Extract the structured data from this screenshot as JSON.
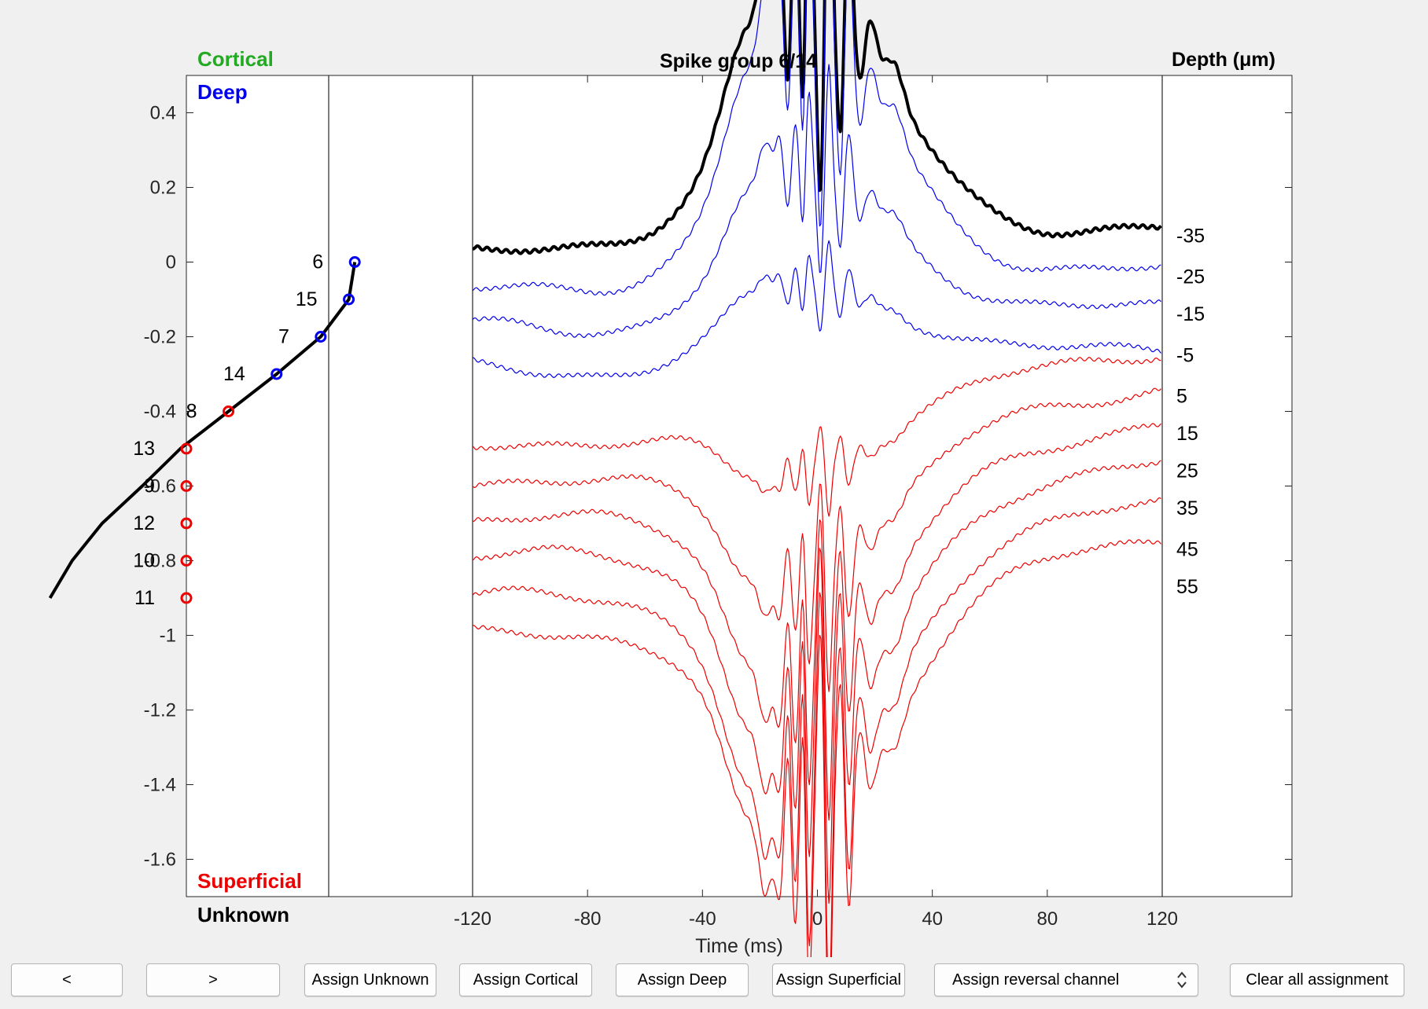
{
  "chart_data": {
    "type": "line",
    "title": "Spike group 6/14",
    "left_panel": {
      "ylim": [
        -1.7,
        0.5
      ],
      "yticks": [
        0.4,
        0.2,
        0,
        -0.2,
        -0.4,
        -0.6,
        -0.8,
        -1,
        -1.2,
        -1.4,
        -1.6
      ],
      "ytick_labels": [
        "0.4",
        "0.2",
        "0",
        "-0.2",
        "-0.4",
        "-0.6",
        "-0.8",
        "-1",
        "-1.2",
        "-1.4",
        "-1.6"
      ],
      "xlim": [
        0,
        1
      ],
      "channel_points": [
        {
          "channel": "6",
          "x": 0.84,
          "y": 0.0,
          "group": "deep"
        },
        {
          "channel": "15",
          "x": 0.81,
          "y": -0.1,
          "group": "deep"
        },
        {
          "channel": "7",
          "x": 0.67,
          "y": -0.2,
          "group": "deep"
        },
        {
          "channel": "14",
          "x": 0.45,
          "y": -0.3,
          "group": "deep"
        },
        {
          "channel": "8",
          "x": 0.21,
          "y": -0.4,
          "group": "superficial"
        },
        {
          "channel": "13",
          "x": -0.03,
          "y": -0.5,
          "group": "superficial"
        },
        {
          "channel": "9",
          "x": -0.22,
          "y": -0.6,
          "group": "superficial"
        },
        {
          "channel": "12",
          "x": -0.42,
          "y": -0.7,
          "group": "superficial"
        },
        {
          "channel": "10",
          "x": -0.57,
          "y": -0.8,
          "group": "superficial"
        },
        {
          "channel": "11",
          "x": -0.68,
          "y": -0.9,
          "group": "superficial"
        }
      ],
      "group_labels": {
        "cortical": "Cortical",
        "deep": "Deep",
        "superficial": "Superficial",
        "unknown": "Unknown"
      }
    },
    "right_panel": {
      "xlabel": "Time (ms)",
      "xlim": [
        -120,
        120
      ],
      "xticks": [
        -120,
        -80,
        -40,
        0,
        40,
        80,
        120
      ],
      "xtick_labels": [
        "-120",
        "-80",
        "-40",
        "0",
        "40",
        "80",
        "120"
      ],
      "depth_title": "Depth (μm)",
      "series": [
        {
          "depth": "-35",
          "group": "deep",
          "baseline": 0.07,
          "amp": -1.0,
          "style": "bold"
        },
        {
          "depth": "-25",
          "group": "deep",
          "baseline": -0.04,
          "amp": -1.0,
          "style": "thin"
        },
        {
          "depth": "-15",
          "group": "deep",
          "baseline": -0.14,
          "amp": -0.6,
          "style": "thin"
        },
        {
          "depth": "-5",
          "group": "deep",
          "baseline": -0.25,
          "amp": -0.3,
          "style": "thin"
        },
        {
          "depth": "5",
          "group": "superficial",
          "baseline": -0.36,
          "amp": 0.3,
          "style": "thin"
        },
        {
          "depth": "15",
          "group": "superficial",
          "baseline": -0.46,
          "amp": 0.6,
          "style": "thin"
        },
        {
          "depth": "25",
          "group": "superficial",
          "baseline": -0.56,
          "amp": 0.8,
          "style": "thin"
        },
        {
          "depth": "35",
          "group": "superficial",
          "baseline": -0.66,
          "amp": 0.9,
          "style": "thin"
        },
        {
          "depth": "45",
          "group": "superficial",
          "baseline": -0.77,
          "amp": 1.0,
          "style": "thin"
        },
        {
          "depth": "55",
          "group": "superficial",
          "baseline": -0.87,
          "amp": 1.0,
          "style": "thin"
        }
      ]
    }
  },
  "colors": {
    "cortical": "#22aa22",
    "deep": "#0000ee",
    "superficial": "#ee0000",
    "black": "#000000"
  },
  "buttons": {
    "prev": "<",
    "next": ">",
    "assign_unknown": "Assign Unknown",
    "assign_cortical": "Assign Cortical",
    "assign_deep": "Assign Deep",
    "assign_superficial": "Assign Superficial",
    "reversal_select": "Assign reversal channel",
    "clear_all": "Clear all assignment"
  }
}
